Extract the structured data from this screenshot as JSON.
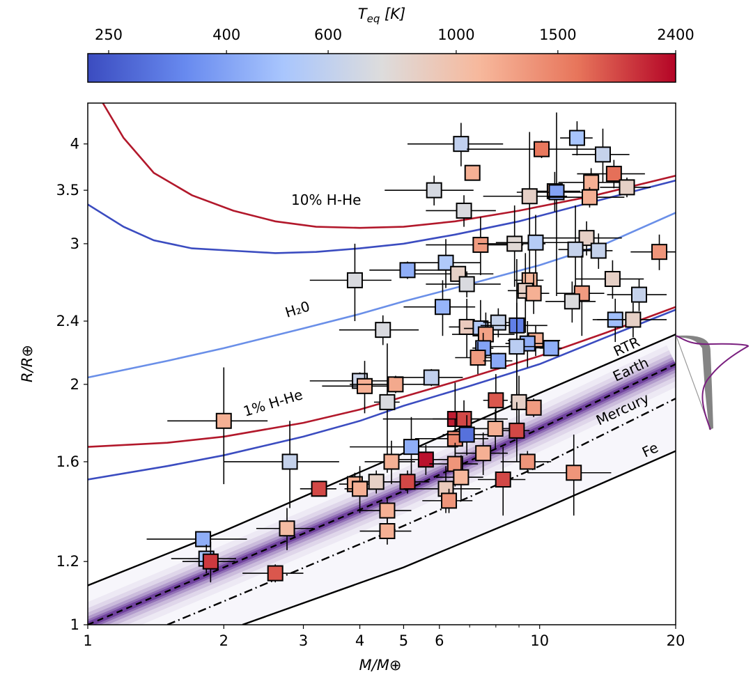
{
  "chart_data": {
    "type": "scatter",
    "title": "",
    "xlabel": "M/M⊕",
    "ylabel": "R/R⊕",
    "xscale": "log",
    "yscale": "log",
    "xlim": [
      1,
      20
    ],
    "ylim": [
      1,
      4.5
    ],
    "xticks": [
      {
        "value": 1,
        "label": "1"
      },
      {
        "value": 2,
        "label": "2"
      },
      {
        "value": 3,
        "label": "3"
      },
      {
        "value": 4,
        "label": "4"
      },
      {
        "value": 5,
        "label": "5"
      },
      {
        "value": 6,
        "label": "6"
      },
      {
        "value": 10,
        "label": "10"
      },
      {
        "value": 20,
        "label": "20"
      }
    ],
    "xminor_ticks": [
      7,
      8,
      9
    ],
    "yticks": [
      {
        "value": 1,
        "label": "1"
      },
      {
        "value": 1.2,
        "label": "1.2"
      },
      {
        "value": 1.6,
        "label": "1.6"
      },
      {
        "value": 2,
        "label": "2"
      },
      {
        "value": 2.4,
        "label": "2.4"
      },
      {
        "value": 3,
        "label": "3"
      },
      {
        "value": 3.5,
        "label": "3.5"
      },
      {
        "value": 4,
        "label": "4"
      }
    ],
    "grid": false,
    "colorbar": {
      "label": "T_eq [K]",
      "label_main": "T",
      "label_sub": "eq",
      "label_unit": " [K]",
      "scale": "log",
      "range": [
        230,
        2400
      ],
      "ticks": [
        {
          "value": 250,
          "label": "250"
        },
        {
          "value": 400,
          "label": "400"
        },
        {
          "value": 600,
          "label": "600"
        },
        {
          "value": 1000,
          "label": "1000"
        },
        {
          "value": 1500,
          "label": "1500"
        },
        {
          "value": 2400,
          "label": "2400"
        }
      ],
      "colormap": "coolwarm",
      "colormap_stops": [
        "#3b4cc0",
        "#688aef",
        "#a9c6fd",
        "#dddcdc",
        "#f7b89c",
        "#e7755b",
        "#b40426"
      ],
      "placement": "top"
    },
    "curves": [
      {
        "name": "10% H-He (hot)",
        "label": "10% H-He",
        "color": "#b2182b",
        "style": "solid",
        "points": [
          [
            1.08,
            4.5
          ],
          [
            1.2,
            4.07
          ],
          [
            1.4,
            3.68
          ],
          [
            1.7,
            3.45
          ],
          [
            2.1,
            3.3
          ],
          [
            2.6,
            3.2
          ],
          [
            3.2,
            3.15
          ],
          [
            4,
            3.14
          ],
          [
            5,
            3.15
          ],
          [
            6.5,
            3.2
          ],
          [
            9,
            3.3
          ],
          [
            13,
            3.44
          ],
          [
            20,
            3.65
          ]
        ]
      },
      {
        "name": "10% H-He (cold)",
        "label": "",
        "color": "#3b4cc0",
        "style": "solid",
        "points": [
          [
            1,
            3.36
          ],
          [
            1.2,
            3.15
          ],
          [
            1.4,
            3.03
          ],
          [
            1.7,
            2.96
          ],
          [
            2.1,
            2.94
          ],
          [
            2.6,
            2.92
          ],
          [
            3.2,
            2.93
          ],
          [
            4,
            2.96
          ],
          [
            5,
            3.0
          ],
          [
            6.5,
            3.08
          ],
          [
            9,
            3.2
          ],
          [
            13,
            3.38
          ],
          [
            20,
            3.6
          ]
        ]
      },
      {
        "name": "H2O",
        "label": "H₂0",
        "color": "#6a8fe8",
        "style": "solid",
        "points": [
          [
            1,
            2.04
          ],
          [
            1.5,
            2.14
          ],
          [
            2,
            2.22
          ],
          [
            3,
            2.35
          ],
          [
            4,
            2.45
          ],
          [
            5,
            2.54
          ],
          [
            7,
            2.67
          ],
          [
            10,
            2.82
          ],
          [
            14,
            3.0
          ],
          [
            20,
            3.28
          ]
        ]
      },
      {
        "name": "1% H-He (hot)",
        "label": "1% H-He",
        "color": "#b2182b",
        "style": "solid",
        "points": [
          [
            1,
            1.67
          ],
          [
            1.5,
            1.69
          ],
          [
            2,
            1.72
          ],
          [
            3,
            1.79
          ],
          [
            4,
            1.86
          ],
          [
            5,
            1.93
          ],
          [
            7,
            2.04
          ],
          [
            10,
            2.17
          ],
          [
            14,
            2.32
          ],
          [
            20,
            2.5
          ]
        ]
      },
      {
        "name": "1% H-He (cold)",
        "label": "",
        "color": "#3b4cc0",
        "style": "solid",
        "points": [
          [
            1,
            1.52
          ],
          [
            1.5,
            1.58
          ],
          [
            2,
            1.63
          ],
          [
            3,
            1.72
          ],
          [
            4,
            1.8
          ],
          [
            5,
            1.88
          ],
          [
            7,
            1.99
          ],
          [
            10,
            2.12
          ],
          [
            14,
            2.29
          ],
          [
            20,
            2.48
          ]
        ]
      },
      {
        "name": "RTR",
        "label": "RTR",
        "color": "#000000",
        "style": "solid",
        "points": [
          [
            1,
            1.12
          ],
          [
            2,
            1.31
          ],
          [
            5,
            1.64
          ],
          [
            10,
            1.95
          ],
          [
            20,
            2.31
          ]
        ]
      },
      {
        "name": "Earth",
        "label": "Earth",
        "color": "#000000",
        "style": "dashed",
        "points": [
          [
            1,
            1.0
          ],
          [
            2,
            1.18
          ],
          [
            5,
            1.47
          ],
          [
            10,
            1.76
          ],
          [
            20,
            2.12
          ]
        ]
      },
      {
        "name": "Mercury",
        "label": "Mercury",
        "color": "#000000",
        "style": "dashdot",
        "points": [
          [
            1.5,
            1.0
          ],
          [
            2,
            1.07
          ],
          [
            5,
            1.33
          ],
          [
            10,
            1.58
          ],
          [
            20,
            1.92
          ]
        ]
      },
      {
        "name": "Fe",
        "label": "Fe",
        "color": "#000000",
        "style": "solid",
        "points": [
          [
            2.2,
            1.0
          ],
          [
            5,
            1.18
          ],
          [
            10,
            1.39
          ],
          [
            20,
            1.65
          ]
        ]
      }
    ],
    "density_band": {
      "name": "Earth-like composition band",
      "color": "#3f007d",
      "between": [
        "Mercury",
        "RTR"
      ],
      "peak": "Earth"
    },
    "side_distribution": {
      "description": "radius distribution inset at right edge",
      "colors": [
        "#7a1f7f",
        "#555555"
      ]
    },
    "points": [
      {
        "m": 6.7,
        "r": 4.0,
        "teq": 600,
        "xerr": 1.6,
        "yerr": 0.25
      },
      {
        "m": 10.1,
        "r": 3.94,
        "teq": 1600,
        "xerr": 3.2,
        "yerr": 0.1
      },
      {
        "m": 12.1,
        "r": 4.07,
        "teq": 500,
        "xerr": 1.0,
        "yerr": 0.2
      },
      {
        "m": 13.8,
        "r": 3.88,
        "teq": 620,
        "xerr": 2.0,
        "yerr": 0.3
      },
      {
        "m": 7.1,
        "r": 3.68,
        "teq": 1150,
        "xerr": 0.0,
        "yerr": 0.05
      },
      {
        "m": 14.6,
        "r": 3.67,
        "teq": 1650,
        "xerr": 2.5,
        "yerr": 0.15
      },
      {
        "m": 5.84,
        "r": 3.5,
        "teq": 700,
        "xerr": 1.3,
        "yerr": 0.15
      },
      {
        "m": 10.8,
        "r": 3.49,
        "teq": 1150,
        "xerr": 1.5,
        "yerr": 0.2
      },
      {
        "m": 10.9,
        "r": 3.48,
        "teq": 400,
        "xerr": 2.0,
        "yerr": 0.9
      },
      {
        "m": 9.5,
        "r": 3.44,
        "teq": 850,
        "xerr": 2.0,
        "yerr": 0.7
      },
      {
        "m": 13.0,
        "r": 3.58,
        "teq": 1150,
        "xerr": 2.0,
        "yerr": 0.15
      },
      {
        "m": 12.9,
        "r": 3.43,
        "teq": 1150,
        "xerr": 2.5,
        "yerr": 0.1
      },
      {
        "m": 15.6,
        "r": 3.53,
        "teq": 850,
        "xerr": 2.0,
        "yerr": 0.1
      },
      {
        "m": 6.8,
        "r": 3.3,
        "teq": 720,
        "xerr": 1.2,
        "yerr": 0.15
      },
      {
        "m": 7.4,
        "r": 2.99,
        "teq": 1300,
        "xerr": 1.8,
        "yerr": 0.25
      },
      {
        "m": 8.8,
        "r": 3.0,
        "teq": 780,
        "xerr": 1.5,
        "yerr": 0.35
      },
      {
        "m": 9.8,
        "r": 3.01,
        "teq": 550,
        "xerr": 1.8,
        "yerr": 0.25
      },
      {
        "m": 12.7,
        "r": 3.05,
        "teq": 850,
        "xerr": 2.5,
        "yerr": 0.15
      },
      {
        "m": 12.0,
        "r": 2.95,
        "teq": 620,
        "xerr": 1.0,
        "yerr": 0.4
      },
      {
        "m": 13.5,
        "r": 2.94,
        "teq": 620,
        "xerr": 1.0,
        "yerr": 0.15
      },
      {
        "m": 18.4,
        "r": 2.93,
        "teq": 1350,
        "xerr": 2.5,
        "yerr": 0.15
      },
      {
        "m": 5.1,
        "r": 2.78,
        "teq": 430,
        "xerr": 0.9,
        "yerr": 0.07
      },
      {
        "m": 6.2,
        "r": 2.84,
        "teq": 530,
        "xerr": 1.2,
        "yerr": 0.2
      },
      {
        "m": 6.6,
        "r": 2.75,
        "teq": 850,
        "xerr": 1.3,
        "yerr": 0.05
      },
      {
        "m": 6.9,
        "r": 2.67,
        "teq": 720,
        "xerr": 1.3,
        "yerr": 0.1
      },
      {
        "m": 3.9,
        "r": 2.7,
        "teq": 720,
        "xerr": 0.8,
        "yerr": 0.3
      },
      {
        "m": 9.5,
        "r": 2.7,
        "teq": 1100,
        "xerr": 0.7,
        "yerr": 0.1
      },
      {
        "m": 9.3,
        "r": 2.62,
        "teq": 850,
        "xerr": 0.8,
        "yerr": 0.3
      },
      {
        "m": 9.7,
        "r": 2.6,
        "teq": 1150,
        "xerr": 0.8,
        "yerr": 0.15
      },
      {
        "m": 12.4,
        "r": 2.6,
        "teq": 1300,
        "xerr": 1.5,
        "yerr": 0.3
      },
      {
        "m": 11.8,
        "r": 2.54,
        "teq": 730,
        "xerr": 1.5,
        "yerr": 0.15
      },
      {
        "m": 14.5,
        "r": 2.71,
        "teq": 850,
        "xerr": 2.5,
        "yerr": 0.15
      },
      {
        "m": 16.6,
        "r": 2.59,
        "teq": 620,
        "xerr": 2.5,
        "yerr": 0.12
      },
      {
        "m": 6.1,
        "r": 2.5,
        "teq": 450,
        "xerr": 1.1,
        "yerr": 0.2
      },
      {
        "m": 4.5,
        "r": 2.34,
        "teq": 720,
        "xerr": 0.9,
        "yerr": 0.1
      },
      {
        "m": 6.9,
        "r": 2.36,
        "teq": 900,
        "xerr": 0.6,
        "yerr": 0.2
      },
      {
        "m": 7.4,
        "r": 2.35,
        "teq": 540,
        "xerr": 0.6,
        "yerr": 0.2
      },
      {
        "m": 8.1,
        "r": 2.39,
        "teq": 620,
        "xerr": 0.6,
        "yerr": 0.1
      },
      {
        "m": 8.9,
        "r": 2.37,
        "teq": 320,
        "xerr": 1.5,
        "yerr": 0.5
      },
      {
        "m": 7.6,
        "r": 2.31,
        "teq": 1250,
        "xerr": 1.2,
        "yerr": 0.15
      },
      {
        "m": 9.8,
        "r": 2.27,
        "teq": 1150,
        "xerr": 1.3,
        "yerr": 0.1
      },
      {
        "m": 9.4,
        "r": 2.25,
        "teq": 430,
        "xerr": 1.0,
        "yerr": 0.15
      },
      {
        "m": 8.9,
        "r": 2.23,
        "teq": 570,
        "xerr": 1.5,
        "yerr": 0.3
      },
      {
        "m": 10.6,
        "r": 2.22,
        "teq": 430,
        "xerr": 0.6,
        "yerr": 0.05
      },
      {
        "m": 7.5,
        "r": 2.22,
        "teq": 400,
        "xerr": 0.4,
        "yerr": 0.1
      },
      {
        "m": 7.3,
        "r": 2.16,
        "teq": 1300,
        "xerr": 0.8,
        "yerr": 0.1
      },
      {
        "m": 8.1,
        "r": 2.14,
        "teq": 420,
        "xerr": 0.6,
        "yerr": 0.05
      },
      {
        "m": 14.7,
        "r": 2.41,
        "teq": 480,
        "xerr": 1.3,
        "yerr": 0.15
      },
      {
        "m": 16.1,
        "r": 2.41,
        "teq": 850,
        "xerr": 3.0,
        "yerr": 0.12
      },
      {
        "m": 4.0,
        "r": 2.02,
        "teq": 650,
        "xerr": 0.9,
        "yerr": 0.05
      },
      {
        "m": 4.1,
        "r": 1.99,
        "teq": 1150,
        "xerr": 0.8,
        "yerr": 0.15
      },
      {
        "m": 4.8,
        "r": 2.0,
        "teq": 1200,
        "xerr": 1.0,
        "yerr": 0.05
      },
      {
        "m": 5.76,
        "r": 2.04,
        "teq": 600,
        "xerr": 1.0,
        "yerr": 0.05
      },
      {
        "m": 4.6,
        "r": 1.9,
        "teq": 720,
        "xerr": 0.3,
        "yerr": 0.35
      },
      {
        "m": 2.0,
        "r": 1.8,
        "teq": 1150,
        "xerr": 0.5,
        "yerr": 0.3
      },
      {
        "m": 8.0,
        "r": 1.91,
        "teq": 1800,
        "xerr": 0.5,
        "yerr": 0.15
      },
      {
        "m": 9.0,
        "r": 1.9,
        "teq": 850,
        "xerr": 0.4,
        "yerr": 0.15
      },
      {
        "m": 9.7,
        "r": 1.87,
        "teq": 1300,
        "xerr": 0.4,
        "yerr": 0.05
      },
      {
        "m": 6.5,
        "r": 1.81,
        "teq": 2200,
        "xerr": 2.0,
        "yerr": 0.2
      },
      {
        "m": 6.8,
        "r": 1.81,
        "teq": 1900,
        "xerr": 1.0,
        "yerr": 0.1
      },
      {
        "m": 6.5,
        "r": 1.71,
        "teq": 1450,
        "xerr": 1.2,
        "yerr": 0.1
      },
      {
        "m": 6.9,
        "r": 1.73,
        "teq": 290,
        "xerr": 0.8,
        "yerr": 0.1
      },
      {
        "m": 7.98,
        "r": 1.76,
        "teq": 1150,
        "xerr": 0.8,
        "yerr": 0.1
      },
      {
        "m": 8.9,
        "r": 1.75,
        "teq": 1900,
        "xerr": 0.6,
        "yerr": 0.15
      },
      {
        "m": 5.2,
        "r": 1.67,
        "teq": 430,
        "xerr": 1.4,
        "yerr": 0.15
      },
      {
        "m": 5.6,
        "r": 1.61,
        "teq": 2300,
        "xerr": 1.0,
        "yerr": 0.07
      },
      {
        "m": 4.7,
        "r": 1.6,
        "teq": 1150,
        "xerr": 0.6,
        "yerr": 0.1
      },
      {
        "m": 6.5,
        "r": 1.59,
        "teq": 1350,
        "xerr": 0.8,
        "yerr": 0.1
      },
      {
        "m": 7.5,
        "r": 1.64,
        "teq": 1150,
        "xerr": 1.0,
        "yerr": 0.1
      },
      {
        "m": 9.4,
        "r": 1.6,
        "teq": 1350,
        "xerr": 1.2,
        "yerr": 0.05
      },
      {
        "m": 2.8,
        "r": 1.6,
        "teq": 620,
        "xerr": 0.8,
        "yerr": 0.2
      },
      {
        "m": 5.1,
        "r": 1.51,
        "teq": 1900,
        "xerr": 0.6,
        "yerr": 0.05
      },
      {
        "m": 3.25,
        "r": 1.48,
        "teq": 1900,
        "xerr": 0.3,
        "yerr": 0.03
      },
      {
        "m": 3.9,
        "r": 1.5,
        "teq": 1150,
        "xerr": 0.3,
        "yerr": 0.05
      },
      {
        "m": 4.0,
        "r": 1.48,
        "teq": 1150,
        "xerr": 0.3,
        "yerr": 0.1
      },
      {
        "m": 4.35,
        "r": 1.51,
        "teq": 850,
        "xerr": 0.5,
        "yerr": 0.05
      },
      {
        "m": 6.7,
        "r": 1.53,
        "teq": 1100,
        "xerr": 0.8,
        "yerr": 0.1
      },
      {
        "m": 6.2,
        "r": 1.48,
        "teq": 900,
        "xerr": 1.2,
        "yerr": 0.1
      },
      {
        "m": 6.3,
        "r": 1.43,
        "teq": 1350,
        "xerr": 0.8,
        "yerr": 0.05
      },
      {
        "m": 8.3,
        "r": 1.52,
        "teq": 1900,
        "xerr": 1.0,
        "yerr": 0.15
      },
      {
        "m": 11.9,
        "r": 1.55,
        "teq": 1350,
        "xerr": 2.5,
        "yerr": 0.18
      },
      {
        "m": 4.6,
        "r": 1.39,
        "teq": 1150,
        "xerr": 0.6,
        "yerr": 0.05
      },
      {
        "m": 4.6,
        "r": 1.31,
        "teq": 1150,
        "xerr": 0.6,
        "yerr": 0.05
      },
      {
        "m": 2.76,
        "r": 1.32,
        "teq": 1050,
        "xerr": 0.4,
        "yerr": 0.08
      },
      {
        "m": 1.8,
        "r": 1.28,
        "teq": 430,
        "xerr": 0.45,
        "yerr": 0.02
      },
      {
        "m": 1.83,
        "r": 1.21,
        "teq": 500,
        "xerr": 0.3,
        "yerr": 0.05
      },
      {
        "m": 1.87,
        "r": 1.2,
        "teq": 2000,
        "xerr": 0.25,
        "yerr": 0.07
      },
      {
        "m": 2.6,
        "r": 1.16,
        "teq": 1800,
        "xerr": 0.4,
        "yerr": 0.03
      }
    ]
  }
}
